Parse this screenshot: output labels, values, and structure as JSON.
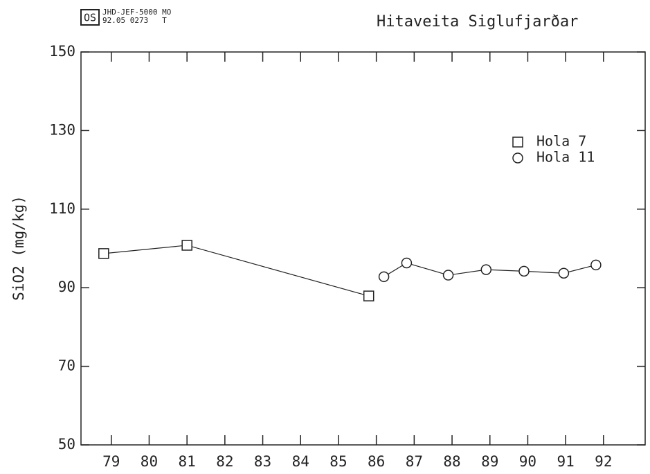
{
  "header": {
    "code": "JHD-JEF-5000 MO",
    "ref": "92.05 0273   T",
    "logo": "OS"
  },
  "chart_data": {
    "type": "line",
    "title": "Hitaveita Siglufjarðar",
    "y_label": "SiO2 (mg/kg)",
    "xlim": [
      78.2,
      93.1
    ],
    "xticks": [
      79,
      80,
      81,
      82,
      83,
      84,
      85,
      86,
      87,
      88,
      89,
      90,
      91,
      92
    ],
    "ylim": [
      50,
      150
    ],
    "yticks": [
      50,
      70,
      90,
      110,
      130,
      150
    ],
    "legend": "upper-right",
    "series": [
      {
        "name": "Hola 7",
        "color": "#222222",
        "marker": "square",
        "x": [
          78.8,
          81.0,
          85.8
        ],
        "values": [
          98.7,
          100.8,
          87.9
        ]
      },
      {
        "name": "Hola 11",
        "color": "#222222",
        "marker": "circle",
        "x": [
          86.2,
          86.8,
          87.9,
          88.9,
          89.9,
          90.95,
          91.8
        ],
        "values": [
          92.8,
          96.3,
          93.2,
          94.6,
          94.2,
          93.7,
          95.8
        ]
      }
    ]
  }
}
